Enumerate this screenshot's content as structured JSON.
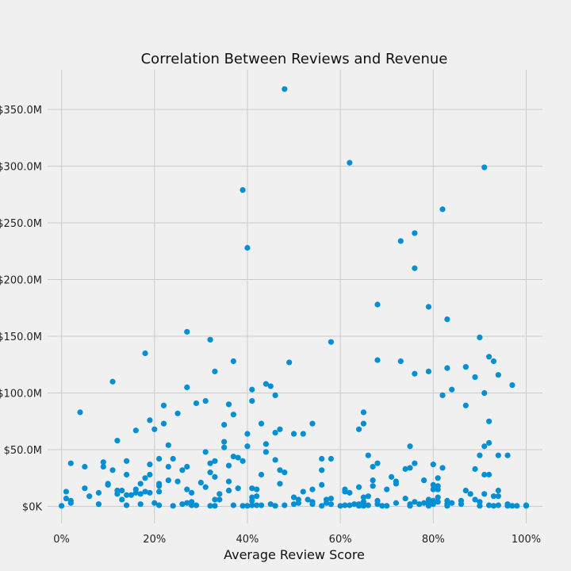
{
  "chart_data": {
    "type": "scatter",
    "title": "Correlation Between Reviews and Revenue",
    "xlabel": "Average Review Score",
    "ylabel": "",
    "xlim": [
      -0.03,
      1.035
    ],
    "ylim": [
      -15000000,
      385000000
    ],
    "x_ticks": [
      0,
      0.2,
      0.4,
      0.6,
      0.8,
      1.0
    ],
    "x_tick_labels": [
      "0%",
      "20%",
      "40%",
      "60%",
      "80%",
      "100%"
    ],
    "y_ticks": [
      0,
      50000000,
      100000000,
      150000000,
      200000000,
      250000000,
      300000000,
      350000000
    ],
    "y_tick_labels": [
      "$0K",
      "$50.0M",
      "$100.0M",
      "$150.0M",
      "$200.0M",
      "$250.0M",
      "$300.0M",
      "$350.0M"
    ],
    "grid": true,
    "point_color": "#008fd5",
    "series": [
      {
        "points": [
          [
            0.0,
            0.5
          ],
          [
            0.01,
            7
          ],
          [
            0.01,
            13
          ],
          [
            0.02,
            5
          ],
          [
            0.02,
            3
          ],
          [
            0.02,
            38
          ],
          [
            0.04,
            83
          ],
          [
            0.05,
            35
          ],
          [
            0.05,
            16
          ],
          [
            0.06,
            9
          ],
          [
            0.08,
            12
          ],
          [
            0.08,
            2
          ],
          [
            0.09,
            39
          ],
          [
            0.09,
            35
          ],
          [
            0.1,
            19
          ],
          [
            0.1,
            20
          ],
          [
            0.11,
            110
          ],
          [
            0.11,
            32
          ],
          [
            0.12,
            58
          ],
          [
            0.12,
            14
          ],
          [
            0.12,
            11
          ],
          [
            0.13,
            6
          ],
          [
            0.13,
            14
          ],
          [
            0.14,
            40
          ],
          [
            0.14,
            28
          ],
          [
            0.14,
            1
          ],
          [
            0.14,
            10
          ],
          [
            0.15,
            10
          ],
          [
            0.16,
            67
          ],
          [
            0.16,
            15
          ],
          [
            0.16,
            12
          ],
          [
            0.17,
            20
          ],
          [
            0.17,
            2
          ],
          [
            0.17,
            11
          ],
          [
            0.18,
            135
          ],
          [
            0.18,
            25
          ],
          [
            0.18,
            13
          ],
          [
            0.19,
            76
          ],
          [
            0.19,
            37
          ],
          [
            0.19,
            28
          ],
          [
            0.19,
            12
          ],
          [
            0.2,
            68
          ],
          [
            0.2,
            3
          ],
          [
            0.21,
            42
          ],
          [
            0.21,
            20
          ],
          [
            0.21,
            18
          ],
          [
            0.21,
            13
          ],
          [
            0.21,
            1
          ],
          [
            0.22,
            89
          ],
          [
            0.22,
            73
          ],
          [
            0.23,
            54
          ],
          [
            0.23,
            35
          ],
          [
            0.23,
            23
          ],
          [
            0.24,
            42
          ],
          [
            0.24,
            0.5
          ],
          [
            0.25,
            82
          ],
          [
            0.25,
            22
          ],
          [
            0.26,
            32
          ],
          [
            0.26,
            2
          ],
          [
            0.27,
            154
          ],
          [
            0.27,
            105
          ],
          [
            0.27,
            35
          ],
          [
            0.27,
            15
          ],
          [
            0.27,
            3
          ],
          [
            0.28,
            12
          ],
          [
            0.28,
            4
          ],
          [
            0.28,
            1
          ],
          [
            0.29,
            91
          ],
          [
            0.29,
            1
          ],
          [
            0.3,
            21
          ],
          [
            0.31,
            93
          ],
          [
            0.31,
            48
          ],
          [
            0.31,
            17
          ],
          [
            0.32,
            147
          ],
          [
            0.32,
            38
          ],
          [
            0.32,
            30
          ],
          [
            0.32,
            0.5
          ],
          [
            0.33,
            119
          ],
          [
            0.33,
            40
          ],
          [
            0.33,
            26
          ],
          [
            0.33,
            6
          ],
          [
            0.33,
            0.5
          ],
          [
            0.34,
            11
          ],
          [
            0.34,
            6
          ],
          [
            0.35,
            72
          ],
          [
            0.35,
            57
          ],
          [
            0.35,
            52
          ],
          [
            0.36,
            90
          ],
          [
            0.36,
            36
          ],
          [
            0.36,
            22
          ],
          [
            0.36,
            14
          ],
          [
            0.37,
            128
          ],
          [
            0.37,
            81
          ],
          [
            0.37,
            44
          ],
          [
            0.37,
            1
          ],
          [
            0.38,
            43
          ],
          [
            0.38,
            16
          ],
          [
            0.39,
            279
          ],
          [
            0.39,
            40
          ],
          [
            0.39,
            0.5
          ],
          [
            0.4,
            228
          ],
          [
            0.4,
            64
          ],
          [
            0.4,
            53
          ],
          [
            0.4,
            0.5
          ],
          [
            0.41,
            103
          ],
          [
            0.41,
            93
          ],
          [
            0.41,
            16
          ],
          [
            0.41,
            8
          ],
          [
            0.41,
            5
          ],
          [
            0.41,
            1
          ],
          [
            0.42,
            15
          ],
          [
            0.42,
            9
          ],
          [
            0.42,
            1
          ],
          [
            0.43,
            73
          ],
          [
            0.43,
            28
          ],
          [
            0.43,
            1
          ],
          [
            0.44,
            108
          ],
          [
            0.44,
            55
          ],
          [
            0.44,
            48
          ],
          [
            0.45,
            106
          ],
          [
            0.45,
            2
          ],
          [
            0.46,
            98
          ],
          [
            0.46,
            65
          ],
          [
            0.46,
            41
          ],
          [
            0.46,
            0.5
          ],
          [
            0.47,
            68
          ],
          [
            0.47,
            32
          ],
          [
            0.47,
            20
          ],
          [
            0.48,
            368
          ],
          [
            0.48,
            30
          ],
          [
            0.48,
            1
          ],
          [
            0.49,
            127
          ],
          [
            0.5,
            64
          ],
          [
            0.5,
            8
          ],
          [
            0.5,
            2
          ],
          [
            0.51,
            6
          ],
          [
            0.51,
            3
          ],
          [
            0.52,
            64
          ],
          [
            0.52,
            13
          ],
          [
            0.53,
            6
          ],
          [
            0.54,
            73
          ],
          [
            0.54,
            15
          ],
          [
            0.54,
            4
          ],
          [
            0.54,
            2
          ],
          [
            0.56,
            42
          ],
          [
            0.56,
            32
          ],
          [
            0.56,
            19
          ],
          [
            0.56,
            0.5
          ],
          [
            0.57,
            6
          ],
          [
            0.57,
            3
          ],
          [
            0.58,
            145
          ],
          [
            0.58,
            42
          ],
          [
            0.58,
            7
          ],
          [
            0.58,
            2
          ],
          [
            0.6,
            0.5
          ],
          [
            0.61,
            15
          ],
          [
            0.61,
            13
          ],
          [
            0.61,
            1
          ],
          [
            0.62,
            303
          ],
          [
            0.62,
            12
          ],
          [
            0.62,
            1
          ],
          [
            0.63,
            2
          ],
          [
            0.64,
            68
          ],
          [
            0.64,
            17
          ],
          [
            0.64,
            2
          ],
          [
            0.64,
            0.5
          ],
          [
            0.65,
            83
          ],
          [
            0.65,
            73
          ],
          [
            0.65,
            8
          ],
          [
            0.65,
            4
          ],
          [
            0.65,
            0.5
          ],
          [
            0.66,
            45
          ],
          [
            0.66,
            9
          ],
          [
            0.66,
            1
          ],
          [
            0.67,
            35
          ],
          [
            0.67,
            23
          ],
          [
            0.67,
            18
          ],
          [
            0.68,
            178
          ],
          [
            0.68,
            129
          ],
          [
            0.68,
            38
          ],
          [
            0.68,
            5
          ],
          [
            0.68,
            2
          ],
          [
            0.69,
            0.5
          ],
          [
            0.7,
            15
          ],
          [
            0.7,
            0.5
          ],
          [
            0.71,
            26
          ],
          [
            0.72,
            22
          ],
          [
            0.72,
            20
          ],
          [
            0.72,
            3
          ],
          [
            0.73,
            234
          ],
          [
            0.73,
            128
          ],
          [
            0.74,
            33
          ],
          [
            0.74,
            7
          ],
          [
            0.75,
            53
          ],
          [
            0.75,
            34
          ],
          [
            0.75,
            2
          ],
          [
            0.75,
            0.5
          ],
          [
            0.76,
            241
          ],
          [
            0.76,
            210
          ],
          [
            0.76,
            117
          ],
          [
            0.76,
            38
          ],
          [
            0.76,
            4
          ],
          [
            0.77,
            2
          ],
          [
            0.78,
            23
          ],
          [
            0.78,
            3
          ],
          [
            0.79,
            176
          ],
          [
            0.79,
            119
          ],
          [
            0.79,
            6
          ],
          [
            0.79,
            3
          ],
          [
            0.79,
            0.5
          ],
          [
            0.8,
            37
          ],
          [
            0.8,
            19
          ],
          [
            0.8,
            15
          ],
          [
            0.8,
            5
          ],
          [
            0.8,
            2
          ],
          [
            0.81,
            25
          ],
          [
            0.81,
            18
          ],
          [
            0.81,
            15
          ],
          [
            0.81,
            8
          ],
          [
            0.81,
            4
          ],
          [
            0.82,
            262
          ],
          [
            0.82,
            98
          ],
          [
            0.82,
            34
          ],
          [
            0.83,
            165
          ],
          [
            0.83,
            122
          ],
          [
            0.83,
            5
          ],
          [
            0.83,
            2
          ],
          [
            0.83,
            0.5
          ],
          [
            0.84,
            103
          ],
          [
            0.84,
            3
          ],
          [
            0.86,
            5
          ],
          [
            0.86,
            2
          ],
          [
            0.87,
            123
          ],
          [
            0.87,
            89
          ],
          [
            0.87,
            14
          ],
          [
            0.88,
            11
          ],
          [
            0.89,
            114
          ],
          [
            0.89,
            33
          ],
          [
            0.89,
            6
          ],
          [
            0.9,
            149
          ],
          [
            0.9,
            45
          ],
          [
            0.9,
            4
          ],
          [
            0.9,
            0.5
          ],
          [
            0.91,
            299
          ],
          [
            0.91,
            100
          ],
          [
            0.91,
            53
          ],
          [
            0.91,
            28
          ],
          [
            0.91,
            11
          ],
          [
            0.92,
            132
          ],
          [
            0.92,
            75
          ],
          [
            0.92,
            56
          ],
          [
            0.92,
            28
          ],
          [
            0.92,
            1
          ],
          [
            0.93,
            128
          ],
          [
            0.93,
            9
          ],
          [
            0.93,
            0.5
          ],
          [
            0.94,
            116
          ],
          [
            0.94,
            45
          ],
          [
            0.94,
            14
          ],
          [
            0.94,
            9
          ],
          [
            0.94,
            1
          ],
          [
            0.96,
            45
          ],
          [
            0.96,
            2
          ],
          [
            0.96,
            0.5
          ],
          [
            0.97,
            107
          ],
          [
            0.97,
            0.5
          ],
          [
            0.98,
            0.5
          ],
          [
            1.0,
            1
          ],
          [
            1.0,
            0.5
          ]
        ],
        "y_unit_multiplier": 1000000
      }
    ]
  }
}
